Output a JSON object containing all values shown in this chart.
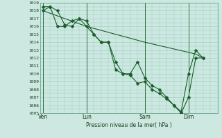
{
  "xlabel": "Pression niveau de la mer( hPa )",
  "ylim": [
    1005,
    1019
  ],
  "yticks": [
    1005,
    1006,
    1007,
    1008,
    1009,
    1010,
    1011,
    1012,
    1013,
    1014,
    1015,
    1016,
    1017,
    1018,
    1019
  ],
  "xtick_labels": [
    "Ven",
    "Lun",
    "Sam",
    "Dim"
  ],
  "xtick_positions": [
    0,
    30,
    70,
    100
  ],
  "xlim": [
    -2,
    120
  ],
  "background_color": "#cce8e0",
  "grid_color": "#99ccc0",
  "line_color": "#1a5c2a",
  "series1_x": [
    0,
    5,
    10,
    15,
    20,
    25,
    30,
    35,
    40,
    45,
    50,
    55,
    60,
    65,
    70,
    75,
    80,
    85,
    90,
    95,
    100,
    105,
    110
  ],
  "series1_y": [
    1018.0,
    1018.5,
    1018.0,
    1016.2,
    1016.0,
    1017.0,
    1016.7,
    1015.0,
    1014.0,
    1014.0,
    1011.5,
    1010.0,
    1010.0,
    1011.5,
    1009.5,
    1008.5,
    1008.0,
    1007.0,
    1006.0,
    1005.0,
    1007.0,
    1012.0,
    1012.0
  ],
  "series2_x": [
    0,
    5,
    10,
    15,
    20,
    25,
    30,
    35,
    40,
    45,
    50,
    55,
    60,
    65,
    70,
    75,
    80,
    85,
    90,
    95,
    100,
    105,
    110
  ],
  "series2_y": [
    1018.5,
    1018.5,
    1016.0,
    1016.0,
    1016.7,
    1017.0,
    1016.0,
    1015.0,
    1014.0,
    1014.0,
    1010.5,
    1010.0,
    1009.8,
    1008.8,
    1009.0,
    1008.0,
    1007.5,
    1006.8,
    1006.0,
    1005.2,
    1010.0,
    1013.0,
    1012.0
  ],
  "series3_x": [
    0,
    30,
    70,
    105,
    110
  ],
  "series3_y": [
    1018.0,
    1016.0,
    1014.0,
    1012.5,
    1012.0
  ],
  "vlines_x": [
    0,
    30,
    70,
    100
  ],
  "marker": "D",
  "markersize": 2.5,
  "lw": 0.8
}
